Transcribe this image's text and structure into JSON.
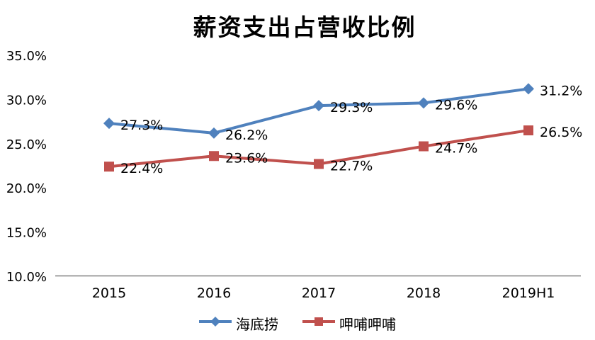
{
  "chart_data": {
    "type": "line",
    "title": "薪资支出占营收比例",
    "categories": [
      "2015",
      "2016",
      "2017",
      "2018",
      "2019H1"
    ],
    "series": [
      {
        "name": "海底捞",
        "color": "#4F81BD",
        "marker": "diamond",
        "values": [
          27.3,
          26.2,
          29.3,
          29.6,
          31.2
        ],
        "data_labels": [
          "27.3%",
          "26.2%",
          "29.3%",
          "29.6%",
          "31.2%"
        ]
      },
      {
        "name": "呷哺呷哺",
        "color": "#C0504D",
        "marker": "square",
        "values": [
          22.4,
          23.6,
          22.7,
          24.7,
          26.5
        ],
        "data_labels": [
          "22.4%",
          "23.6%",
          "22.7%",
          "24.7%",
          "26.5%"
        ]
      }
    ],
    "ylim": [
      10,
      35
    ],
    "ytick_step": 5,
    "ytick_labels": [
      "10.0%",
      "15.0%",
      "20.0%",
      "25.0%",
      "30.0%",
      "35.0%"
    ],
    "grid": false,
    "legend_position": "bottom",
    "axis_color": "#808080",
    "text_color": "#000000"
  }
}
